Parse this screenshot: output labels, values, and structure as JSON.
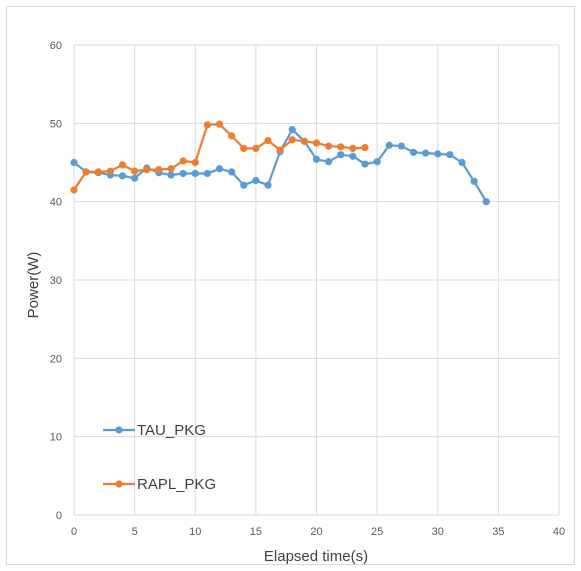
{
  "chart_data": {
    "type": "line",
    "title": "",
    "xlabel": "Elapsed time(s)",
    "ylabel": "Power(W)",
    "xlim": [
      0,
      40
    ],
    "ylim": [
      0,
      60
    ],
    "xticks": [
      0,
      5,
      10,
      15,
      20,
      25,
      30,
      35,
      40
    ],
    "yticks": [
      0,
      10,
      20,
      30,
      40,
      50,
      60
    ],
    "grid": true,
    "legend_position": "bottom-left",
    "series": [
      {
        "name": "TAU_PKG",
        "color": "#5b9bd5",
        "x": [
          0,
          1,
          2,
          3,
          4,
          5,
          6,
          7,
          8,
          9,
          10,
          11,
          12,
          13,
          14,
          15,
          16,
          17,
          18,
          19,
          20,
          21,
          22,
          23,
          24,
          25,
          26,
          27,
          28,
          29,
          30,
          31,
          32,
          33,
          34
        ],
        "y": [
          45.0,
          43.8,
          43.7,
          43.4,
          43.3,
          43.0,
          44.3,
          43.7,
          43.4,
          43.6,
          43.6,
          43.6,
          44.2,
          43.8,
          42.1,
          42.7,
          42.1,
          46.4,
          49.2,
          47.7,
          45.4,
          45.1,
          46.0,
          45.8,
          44.8,
          45.1,
          47.2,
          47.1,
          46.3,
          46.2,
          46.1,
          46.0,
          45.0,
          42.6,
          40.0
        ]
      },
      {
        "name": "RAPL_PKG",
        "color": "#ed7d31",
        "x": [
          0,
          1,
          2,
          3,
          4,
          5,
          6,
          7,
          8,
          9,
          10,
          11,
          12,
          13,
          14,
          15,
          16,
          17,
          18,
          19,
          20,
          21,
          22,
          23,
          24
        ],
        "y": [
          41.5,
          43.8,
          43.8,
          43.9,
          44.7,
          43.9,
          44.1,
          44.1,
          44.2,
          45.2,
          45.0,
          49.8,
          49.9,
          48.4,
          46.8,
          46.8,
          47.8,
          46.6,
          47.9,
          47.7,
          47.5,
          47.1,
          47.0,
          46.8,
          46.9
        ]
      }
    ]
  }
}
